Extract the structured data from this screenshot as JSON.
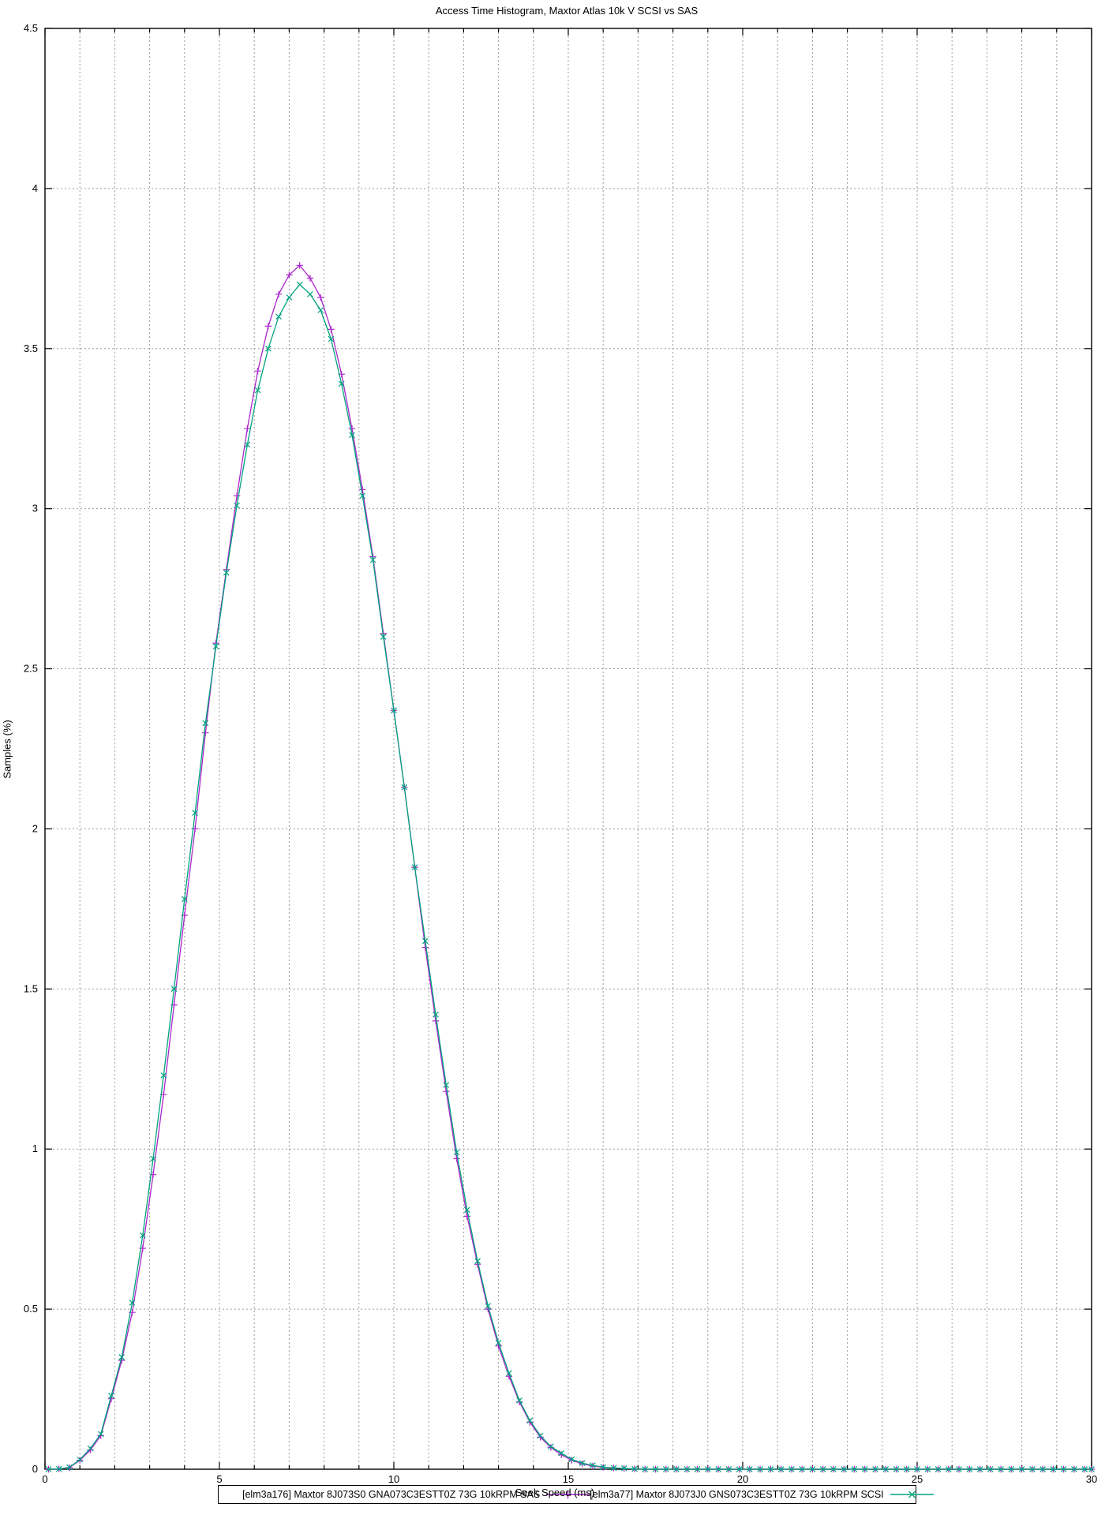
{
  "page": {
    "title": "Access Time Histogram, Maxtor Atlas 10k V SCSI vs SAS"
  },
  "chart_data": {
    "type": "line",
    "title": "Access Time Histogram, Maxtor Atlas 10k V SCSI vs SAS",
    "xlabel": "Seek Speed (ms)",
    "ylabel": "Samples (%)",
    "xlim": [
      0,
      30
    ],
    "ylim": [
      0,
      4.5
    ],
    "x_tick_labels": [
      "0",
      "5",
      "10",
      "15",
      "20",
      "25",
      "30"
    ],
    "x_ticks": [
      0,
      5,
      10,
      15,
      20,
      25,
      30
    ],
    "x_minor_tick_step": 1,
    "y_tick_labels": [
      "0",
      "0.5",
      "1",
      "1.5",
      "2",
      "2.5",
      "3",
      "3.5",
      "4",
      "4.5"
    ],
    "y_ticks": [
      0,
      0.5,
      1,
      1.5,
      2,
      2.5,
      3,
      3.5,
      4,
      4.5
    ],
    "grid": "dotted",
    "grid_color": "#9b9b9b",
    "axis_color": "#000000",
    "legend_position": "bottom-center-boxed",
    "x": [
      0.1,
      0.4,
      0.7,
      1.0,
      1.3,
      1.6,
      1.9,
      2.2,
      2.5,
      2.8,
      3.1,
      3.4,
      3.7,
      4.0,
      4.3,
      4.6,
      4.9,
      5.2,
      5.5,
      5.8,
      6.1,
      6.4,
      6.7,
      7.0,
      7.3,
      7.6,
      7.9,
      8.2,
      8.5,
      8.8,
      9.1,
      9.4,
      9.7,
      10.0,
      10.3,
      10.6,
      10.9,
      11.2,
      11.5,
      11.8,
      12.1,
      12.4,
      12.7,
      13.0,
      13.3,
      13.6,
      13.9,
      14.2,
      14.5,
      14.8,
      15.1,
      15.4,
      15.7,
      16.0,
      16.3,
      16.6,
      16.9,
      17.2,
      17.5,
      17.8,
      18.1,
      18.4,
      18.7,
      19.0,
      19.3,
      19.6,
      19.9,
      20.2,
      20.5,
      20.8,
      21.1,
      21.4,
      21.7,
      22.0,
      22.3,
      22.6,
      22.9,
      23.2,
      23.5,
      23.8,
      24.1,
      24.4,
      24.7,
      25.0,
      25.3,
      25.6,
      25.9,
      26.2,
      26.5,
      26.8,
      27.1,
      27.4,
      27.7,
      28.0,
      28.3,
      28.6,
      28.9,
      29.2,
      29.5,
      29.8,
      30.0
    ],
    "series": [
      {
        "name": "[elm3a176] Maxtor 8J073S0 GNA073C3ESTT0Z 73G 10kRPM SAS",
        "color": "#aa26cc",
        "marker": "plus",
        "values": [
          0,
          0.001,
          0.005,
          0.028,
          0.06,
          0.105,
          0.22,
          0.34,
          0.49,
          0.69,
          0.92,
          1.17,
          1.45,
          1.73,
          2.0,
          2.3,
          2.58,
          2.81,
          3.04,
          3.25,
          3.43,
          3.57,
          3.67,
          3.73,
          3.76,
          3.72,
          3.66,
          3.56,
          3.42,
          3.25,
          3.06,
          2.85,
          2.61,
          2.37,
          2.13,
          1.88,
          1.63,
          1.4,
          1.18,
          0.97,
          0.79,
          0.64,
          0.5,
          0.385,
          0.29,
          0.21,
          0.147,
          0.1,
          0.068,
          0.045,
          0.028,
          0.017,
          0.01,
          0.006,
          0.004,
          0.002,
          0.001,
          0,
          0,
          0,
          0,
          0,
          0,
          0,
          0,
          0,
          0,
          0,
          0,
          0,
          0,
          0,
          0,
          0,
          0,
          0,
          0,
          0,
          0,
          0,
          0,
          0,
          0,
          0,
          0,
          0,
          0,
          0,
          0,
          0,
          0,
          0,
          0,
          0,
          0,
          0,
          0,
          0,
          0,
          0,
          0
        ]
      },
      {
        "name": "[elm3a77] Maxtor 8J073J0 GNS073C3ESTT0Z 73G 10kRPM SCSI",
        "color": "#00a37e",
        "marker": "cross",
        "values": [
          0,
          0.001,
          0.006,
          0.03,
          0.065,
          0.11,
          0.23,
          0.35,
          0.52,
          0.73,
          0.97,
          1.23,
          1.5,
          1.78,
          2.05,
          2.33,
          2.57,
          2.8,
          3.01,
          3.2,
          3.37,
          3.5,
          3.6,
          3.66,
          3.7,
          3.67,
          3.62,
          3.53,
          3.39,
          3.23,
          3.04,
          2.84,
          2.6,
          2.37,
          2.13,
          1.88,
          1.65,
          1.42,
          1.2,
          0.99,
          0.81,
          0.65,
          0.51,
          0.395,
          0.3,
          0.215,
          0.152,
          0.105,
          0.071,
          0.05,
          0.031,
          0.019,
          0.012,
          0.007,
          0.004,
          0.003,
          0.001,
          0,
          0,
          0,
          0,
          0,
          0,
          0,
          0,
          0,
          0,
          0,
          0,
          0,
          0,
          0,
          0,
          0,
          0,
          0,
          0,
          0,
          0,
          0,
          0,
          0,
          0,
          0,
          0,
          0,
          0,
          0,
          0,
          0,
          0,
          0,
          0,
          0,
          0,
          0,
          0,
          0,
          0,
          0,
          0
        ]
      }
    ]
  }
}
